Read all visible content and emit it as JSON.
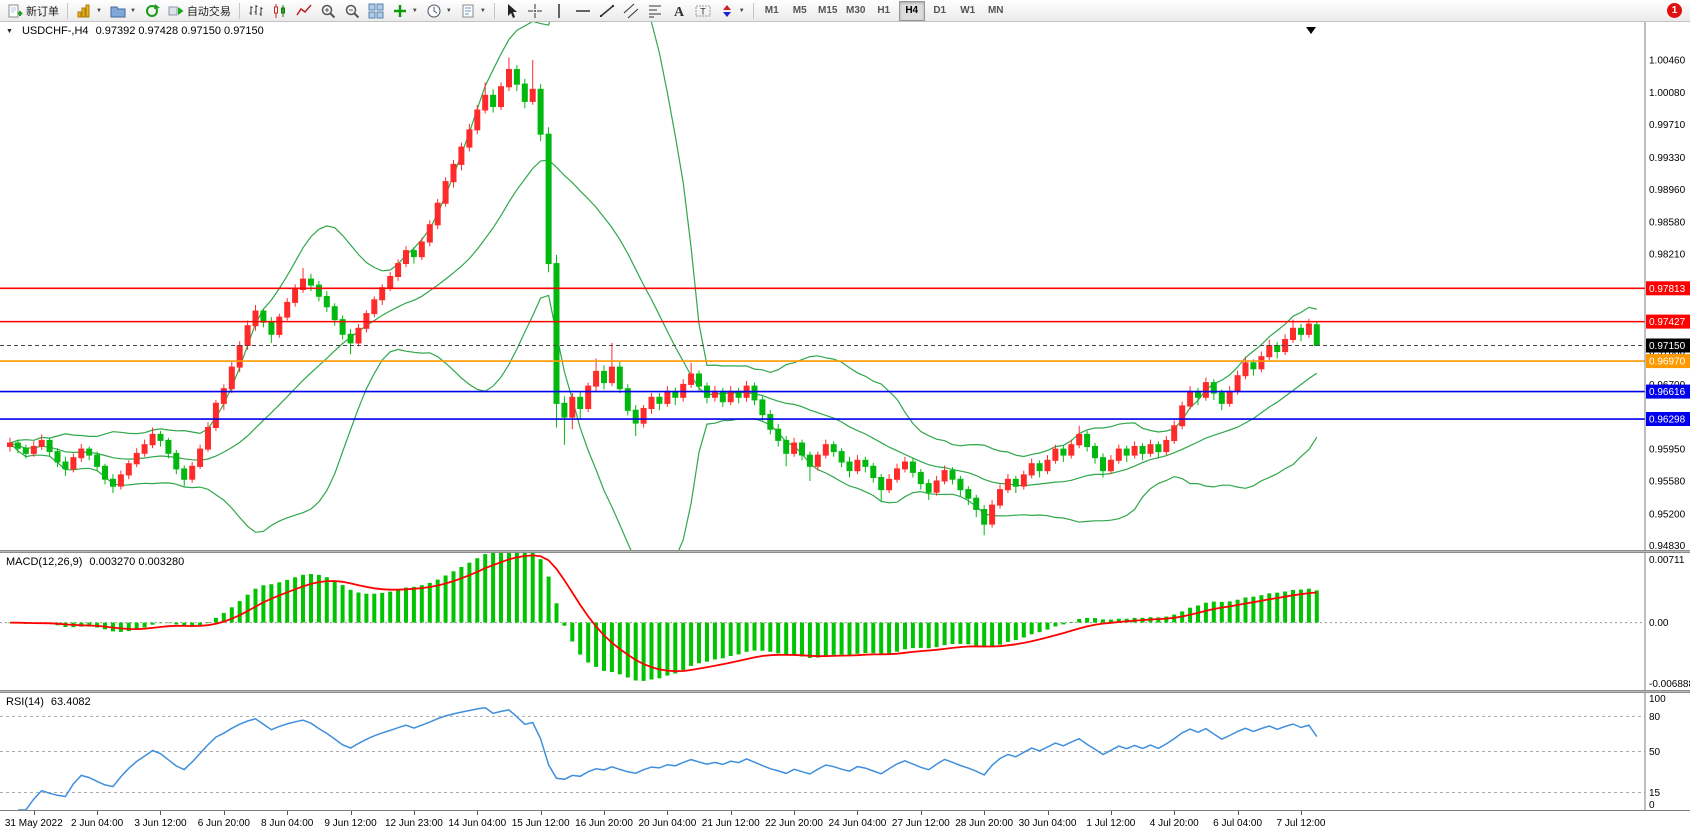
{
  "toolbar": {
    "new_order": {
      "label": "新订单"
    },
    "left_icons": [
      {
        "name": "new-chart",
        "caret": true
      },
      {
        "name": "profiles",
        "caret": true
      },
      {
        "name": "refresh",
        "caret": false
      }
    ],
    "autotrade": {
      "label": "自动交易"
    },
    "chart_tools": [
      {
        "name": "bar-chart"
      },
      {
        "name": "candlestick-chart"
      },
      {
        "name": "line-chart"
      },
      {
        "name": "zoom-in"
      },
      {
        "name": "zoom-out"
      },
      {
        "name": "tile-windows"
      },
      {
        "name": "indicators",
        "caret": true
      },
      {
        "name": "periods",
        "caret": true
      },
      {
        "name": "templates",
        "caret": true
      }
    ],
    "line_tools": [
      {
        "name": "cursor"
      },
      {
        "name": "crosshair"
      },
      {
        "name": "vertical-line"
      },
      {
        "name": "horizontal-line"
      },
      {
        "name": "trendline"
      },
      {
        "name": "channel"
      },
      {
        "name": "fibonacci"
      },
      {
        "name": "text"
      },
      {
        "name": "text-label"
      },
      {
        "name": "arrows",
        "caret": true
      }
    ],
    "timeframes": [
      "M1",
      "M5",
      "M15",
      "M30",
      "H1",
      "H4",
      "D1",
      "W1",
      "MN"
    ],
    "active_timeframe": "H4",
    "news_badge": "1"
  },
  "colors": {
    "bull": "#ff2a2a",
    "bear": "#00b80e",
    "bollinger": "#2fa74a",
    "macd_hist": "#00c400",
    "macd_signal": "#ff0000",
    "rsi_line": "#3f8fdd",
    "axis_line": "#7f7f7f",
    "bid_line": "#444444"
  },
  "chart_data": {
    "type": "candlestick",
    "symbol": "USDCHF-",
    "timeframe": "H4",
    "title_text": "USDCHF-,H4",
    "ohlc_text": "0.97392 0.97428 0.97150 0.97150",
    "price_axis": {
      "min": 0.9478,
      "max": 1.009,
      "tick_values": [
        1.0046,
        1.0008,
        0.9971,
        0.9933,
        0.9896,
        0.9858,
        0.9821,
        0.9783,
        0.9746,
        0.9708,
        0.967,
        0.9632,
        0.9595,
        0.9558,
        0.952,
        0.9483
      ]
    },
    "time_labels": [
      "31 May 2022",
      "2 Jun 04:00",
      "3 Jun 12:00",
      "6 Jun 20:00",
      "8 Jun 04:00",
      "9 Jun 12:00",
      "12 Jun 23:00",
      "14 Jun 04:00",
      "15 Jun 12:00",
      "16 Jun 20:00",
      "20 Jun 04:00",
      "21 Jun 12:00",
      "22 Jun 20:00",
      "24 Jun 04:00",
      "27 Jun 12:00",
      "28 Jun 20:00",
      "30 Jun 04:00",
      "1 Jul 12:00",
      "4 Jul 20:00",
      "6 Jul 04:00",
      "7 Jul 12:00"
    ],
    "label_start_index": 3,
    "label_step": 8,
    "horizontal_lines": [
      {
        "value": 0.97813,
        "label": "0.97813",
        "color": "#ff0000"
      },
      {
        "value": 0.97427,
        "label": "0.97427",
        "color": "#ff0000"
      },
      {
        "value": 0.9697,
        "label": "0.96970",
        "color": "#ff9900"
      },
      {
        "value": 0.96616,
        "label": "0.96616",
        "color": "#0000ee"
      },
      {
        "value": 0.96298,
        "label": "0.96298",
        "color": "#0000ee"
      }
    ],
    "bid_line": {
      "value": 0.9715,
      "label": "0.97150",
      "color": "#000000"
    },
    "candles": [
      [
        0.9598,
        0.9608,
        0.9592,
        0.9602
      ],
      [
        0.9602,
        0.9606,
        0.959,
        0.9596
      ],
      [
        0.9596,
        0.96,
        0.9584,
        0.959
      ],
      [
        0.959,
        0.9604,
        0.9586,
        0.9598
      ],
      [
        0.9598,
        0.9612,
        0.9594,
        0.9605
      ],
      [
        0.9605,
        0.9608,
        0.9586,
        0.9592
      ],
      [
        0.9592,
        0.9596,
        0.9574,
        0.958
      ],
      [
        0.958,
        0.9586,
        0.9564,
        0.9572
      ],
      [
        0.9572,
        0.959,
        0.9568,
        0.9585
      ],
      [
        0.9585,
        0.9601,
        0.958,
        0.9595
      ],
      [
        0.9595,
        0.9598,
        0.9582,
        0.9588
      ],
      [
        0.9588,
        0.9592,
        0.957,
        0.9575
      ],
      [
        0.9575,
        0.9578,
        0.9554,
        0.956
      ],
      [
        0.956,
        0.9566,
        0.9544,
        0.9552
      ],
      [
        0.9552,
        0.957,
        0.9548,
        0.9565
      ],
      [
        0.9565,
        0.9582,
        0.956,
        0.9578
      ],
      [
        0.9578,
        0.9596,
        0.9574,
        0.959
      ],
      [
        0.959,
        0.9606,
        0.9586,
        0.96
      ],
      [
        0.96,
        0.962,
        0.9596,
        0.9612
      ],
      [
        0.9612,
        0.9616,
        0.9598,
        0.9605
      ],
      [
        0.9605,
        0.9608,
        0.9584,
        0.959
      ],
      [
        0.959,
        0.9594,
        0.9566,
        0.9572
      ],
      [
        0.9572,
        0.9576,
        0.9552,
        0.956
      ],
      [
        0.956,
        0.958,
        0.9556,
        0.9575
      ],
      [
        0.9575,
        0.96,
        0.9572,
        0.9595
      ],
      [
        0.9595,
        0.9626,
        0.9592,
        0.962
      ],
      [
        0.962,
        0.9652,
        0.9616,
        0.9648
      ],
      [
        0.9648,
        0.967,
        0.964,
        0.9665
      ],
      [
        0.9665,
        0.9696,
        0.966,
        0.969
      ],
      [
        0.969,
        0.972,
        0.9684,
        0.9715
      ],
      [
        0.9715,
        0.9744,
        0.971,
        0.9738
      ],
      [
        0.9738,
        0.9762,
        0.9732,
        0.9755
      ],
      [
        0.9755,
        0.9758,
        0.9736,
        0.9742
      ],
      [
        0.9742,
        0.9748,
        0.9718,
        0.9728
      ],
      [
        0.9728,
        0.9752,
        0.9724,
        0.9748
      ],
      [
        0.9748,
        0.977,
        0.9744,
        0.9765
      ],
      [
        0.9765,
        0.9786,
        0.976,
        0.978
      ],
      [
        0.978,
        0.9805,
        0.9776,
        0.9792
      ],
      [
        0.9792,
        0.9798,
        0.9778,
        0.9785
      ],
      [
        0.9785,
        0.979,
        0.9766,
        0.9772
      ],
      [
        0.9772,
        0.9778,
        0.9754,
        0.976
      ],
      [
        0.976,
        0.9764,
        0.9738,
        0.9745
      ],
      [
        0.9745,
        0.975,
        0.9722,
        0.9728
      ],
      [
        0.9728,
        0.9734,
        0.9705,
        0.9718
      ],
      [
        0.9718,
        0.974,
        0.9714,
        0.9735
      ],
      [
        0.9735,
        0.9756,
        0.973,
        0.9752
      ],
      [
        0.9752,
        0.9772,
        0.9748,
        0.9768
      ],
      [
        0.9768,
        0.9786,
        0.9762,
        0.9782
      ],
      [
        0.9782,
        0.98,
        0.9778,
        0.9795
      ],
      [
        0.9795,
        0.9815,
        0.979,
        0.981
      ],
      [
        0.981,
        0.983,
        0.9806,
        0.9825
      ],
      [
        0.9825,
        0.9829,
        0.981,
        0.9818
      ],
      [
        0.9818,
        0.984,
        0.9814,
        0.9835
      ],
      [
        0.9835,
        0.986,
        0.983,
        0.9855
      ],
      [
        0.9855,
        0.9885,
        0.985,
        0.988
      ],
      [
        0.988,
        0.991,
        0.9876,
        0.9905
      ],
      [
        0.9905,
        0.993,
        0.9898,
        0.9925
      ],
      [
        0.9925,
        0.995,
        0.9918,
        0.9945
      ],
      [
        0.9945,
        0.9972,
        0.994,
        0.9965
      ],
      [
        0.9965,
        0.9994,
        0.996,
        0.9988
      ],
      [
        0.9988,
        1.002,
        0.9984,
        1.0005
      ],
      [
        1.0005,
        1.0012,
        0.9985,
        0.9992
      ],
      [
        0.9992,
        1.002,
        0.9988,
        1.0015
      ],
      [
        1.0015,
        1.0049,
        1.001,
        1.0035
      ],
      [
        1.0035,
        1.004,
        1.001,
        1.0018
      ],
      [
        1.0018,
        1.0024,
        0.999,
        0.9998
      ],
      [
        0.9998,
        1.0046,
        0.9994,
        1.0012
      ],
      [
        1.0012,
        1.0018,
        0.9952,
        0.996
      ],
      [
        0.996,
        0.9968,
        0.98,
        0.981
      ],
      [
        0.981,
        0.982,
        0.962,
        0.9648
      ],
      [
        0.9648,
        0.9656,
        0.96,
        0.9632
      ],
      [
        0.9632,
        0.966,
        0.9618,
        0.9655
      ],
      [
        0.9655,
        0.9662,
        0.963,
        0.9642
      ],
      [
        0.9642,
        0.9672,
        0.9638,
        0.9668
      ],
      [
        0.9668,
        0.97,
        0.9662,
        0.9685
      ],
      [
        0.9685,
        0.9692,
        0.9664,
        0.9672
      ],
      [
        0.9672,
        0.9718,
        0.9668,
        0.969
      ],
      [
        0.969,
        0.9696,
        0.966,
        0.9665
      ],
      [
        0.9665,
        0.967,
        0.9634,
        0.964
      ],
      [
        0.964,
        0.9646,
        0.961,
        0.9625
      ],
      [
        0.9625,
        0.9646,
        0.962,
        0.9642
      ],
      [
        0.9642,
        0.966,
        0.9636,
        0.9655
      ],
      [
        0.9655,
        0.966,
        0.964,
        0.9648
      ],
      [
        0.9648,
        0.9668,
        0.9644,
        0.9662
      ],
      [
        0.9662,
        0.9666,
        0.9646,
        0.9655
      ],
      [
        0.9655,
        0.9676,
        0.965,
        0.967
      ],
      [
        0.967,
        0.9695,
        0.9666,
        0.9682
      ],
      [
        0.9682,
        0.9686,
        0.9662,
        0.9668
      ],
      [
        0.9668,
        0.9672,
        0.9648,
        0.9655
      ],
      [
        0.9655,
        0.9668,
        0.965,
        0.9662
      ],
      [
        0.9662,
        0.9666,
        0.9644,
        0.965
      ],
      [
        0.965,
        0.9668,
        0.9646,
        0.9662
      ],
      [
        0.9662,
        0.9666,
        0.9648,
        0.9655
      ],
      [
        0.9655,
        0.9674,
        0.965,
        0.9668
      ],
      [
        0.9668,
        0.9672,
        0.9646,
        0.9652
      ],
      [
        0.9652,
        0.9656,
        0.9628,
        0.9635
      ],
      [
        0.9635,
        0.964,
        0.9612,
        0.9618
      ],
      [
        0.9618,
        0.9624,
        0.9598,
        0.9605
      ],
      [
        0.9605,
        0.961,
        0.9575,
        0.959
      ],
      [
        0.959,
        0.9608,
        0.9586,
        0.9602
      ],
      [
        0.9602,
        0.9606,
        0.9582,
        0.9588
      ],
      [
        0.9588,
        0.9592,
        0.9558,
        0.9575
      ],
      [
        0.9575,
        0.9592,
        0.957,
        0.9588
      ],
      [
        0.9588,
        0.9606,
        0.9584,
        0.96
      ],
      [
        0.96,
        0.9604,
        0.9586,
        0.9592
      ],
      [
        0.9592,
        0.9596,
        0.9574,
        0.958
      ],
      [
        0.958,
        0.9586,
        0.9562,
        0.957
      ],
      [
        0.957,
        0.9588,
        0.9566,
        0.9582
      ],
      [
        0.9582,
        0.9586,
        0.9568,
        0.9575
      ],
      [
        0.9575,
        0.9579,
        0.9556,
        0.9562
      ],
      [
        0.9562,
        0.9566,
        0.9535,
        0.9548
      ],
      [
        0.9548,
        0.9566,
        0.9544,
        0.956
      ],
      [
        0.956,
        0.9578,
        0.9556,
        0.9572
      ],
      [
        0.9572,
        0.9586,
        0.9568,
        0.958
      ],
      [
        0.958,
        0.9584,
        0.9562,
        0.9568
      ],
      [
        0.9568,
        0.9572,
        0.9548,
        0.9555
      ],
      [
        0.9555,
        0.956,
        0.9536,
        0.9545
      ],
      [
        0.9545,
        0.9564,
        0.9541,
        0.9558
      ],
      [
        0.9558,
        0.9576,
        0.9554,
        0.957
      ],
      [
        0.957,
        0.9574,
        0.9554,
        0.956
      ],
      [
        0.956,
        0.9564,
        0.954,
        0.9548
      ],
      [
        0.9548,
        0.9552,
        0.953,
        0.9538
      ],
      [
        0.9538,
        0.9542,
        0.9516,
        0.9525
      ],
      [
        0.9525,
        0.953,
        0.9495,
        0.9508
      ],
      [
        0.9508,
        0.9536,
        0.9504,
        0.953
      ],
      [
        0.953,
        0.9554,
        0.9526,
        0.9548
      ],
      [
        0.9548,
        0.9566,
        0.9544,
        0.956
      ],
      [
        0.956,
        0.9564,
        0.9544,
        0.9552
      ],
      [
        0.9552,
        0.957,
        0.9548,
        0.9565
      ],
      [
        0.9565,
        0.9584,
        0.9561,
        0.9578
      ],
      [
        0.9578,
        0.9582,
        0.9562,
        0.957
      ],
      [
        0.957,
        0.9588,
        0.9566,
        0.9582
      ],
      [
        0.9582,
        0.96,
        0.9578,
        0.9595
      ],
      [
        0.9595,
        0.9599,
        0.958,
        0.9588
      ],
      [
        0.9588,
        0.9606,
        0.9584,
        0.96
      ],
      [
        0.96,
        0.9622,
        0.9596,
        0.9612
      ],
      [
        0.9612,
        0.9616,
        0.9592,
        0.9598
      ],
      [
        0.9598,
        0.9602,
        0.9578,
        0.9585
      ],
      [
        0.9585,
        0.959,
        0.9562,
        0.957
      ],
      [
        0.957,
        0.9588,
        0.9566,
        0.9582
      ],
      [
        0.9582,
        0.96,
        0.9578,
        0.9595
      ],
      [
        0.9595,
        0.9599,
        0.958,
        0.9588
      ],
      [
        0.9588,
        0.9604,
        0.9584,
        0.9598
      ],
      [
        0.9598,
        0.9602,
        0.9582,
        0.959
      ],
      [
        0.959,
        0.9606,
        0.9586,
        0.96
      ],
      [
        0.96,
        0.9604,
        0.9584,
        0.9592
      ],
      [
        0.9592,
        0.961,
        0.9588,
        0.9605
      ],
      [
        0.9605,
        0.9628,
        0.9601,
        0.9622
      ],
      [
        0.9622,
        0.965,
        0.9618,
        0.9645
      ],
      [
        0.9645,
        0.9668,
        0.9641,
        0.9662
      ],
      [
        0.9662,
        0.9666,
        0.9646,
        0.9655
      ],
      [
        0.9655,
        0.9678,
        0.9651,
        0.9672
      ],
      [
        0.9672,
        0.9676,
        0.9652,
        0.966
      ],
      [
        0.966,
        0.9664,
        0.964,
        0.9648
      ],
      [
        0.9648,
        0.9668,
        0.9644,
        0.9662
      ],
      [
        0.9662,
        0.9686,
        0.9658,
        0.968
      ],
      [
        0.968,
        0.9702,
        0.9676,
        0.9695
      ],
      [
        0.9695,
        0.9699,
        0.968,
        0.9688
      ],
      [
        0.9688,
        0.9708,
        0.9684,
        0.9702
      ],
      [
        0.9702,
        0.9722,
        0.9698,
        0.9715
      ],
      [
        0.9715,
        0.9719,
        0.97,
        0.9708
      ],
      [
        0.9708,
        0.9728,
        0.9704,
        0.9722
      ],
      [
        0.9722,
        0.9745,
        0.9718,
        0.9735
      ],
      [
        0.9735,
        0.974,
        0.972,
        0.9728
      ],
      [
        0.9728,
        0.9746,
        0.9724,
        0.974
      ],
      [
        0.9739,
        0.9743,
        0.9715,
        0.9715
      ]
    ],
    "indicators": {
      "bollinger": {
        "period": 20,
        "deviation": 2
      },
      "macd": {
        "label": "MACD(12,26,9)",
        "display_values": "0.003270 0.003280",
        "fast": 12,
        "slow": 26,
        "signal": 9,
        "scale_max": 0.00711,
        "scale_min": -0.006888,
        "axis_labels": {
          "max": "0.00711",
          "zero": "0.00",
          "min": "-0.006888"
        }
      },
      "rsi": {
        "label": "RSI(14)",
        "display_value": "63.4082",
        "period": 14,
        "levels": [
          80,
          50,
          15
        ],
        "axis_labels": [
          100,
          80,
          50,
          15,
          0
        ]
      }
    }
  }
}
